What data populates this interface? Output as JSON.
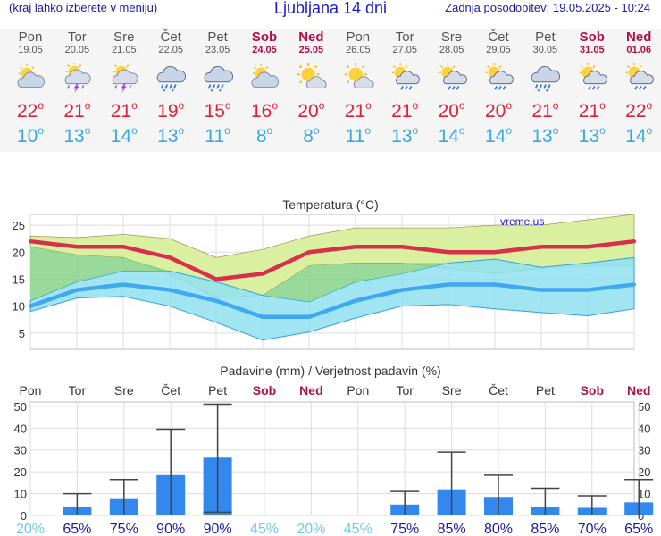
{
  "header": {
    "menu_hint": "(kraj lahko izberete v meniju)",
    "title": "Ljubljana 14 dni",
    "updated": "Zadnja posodobitev: 19.05.2025 - 10:24"
  },
  "days": [
    {
      "name": "Pon",
      "date": "19.05",
      "weekend": false,
      "icon": "partly-cloudy-icon",
      "max": "22",
      "min": "10"
    },
    {
      "name": "Tor",
      "date": "20.05",
      "weekend": false,
      "icon": "thunderstorm-sun-icon",
      "max": "21",
      "min": "13"
    },
    {
      "name": "Sre",
      "date": "21.05",
      "weekend": false,
      "icon": "thunderstorm-sun-icon",
      "max": "21",
      "min": "14"
    },
    {
      "name": "Čet",
      "date": "22.05",
      "weekend": false,
      "icon": "rain-cloud-icon",
      "max": "19",
      "min": "13"
    },
    {
      "name": "Pet",
      "date": "23.05",
      "weekend": false,
      "icon": "rain-cloud-icon",
      "max": "15",
      "min": "11"
    },
    {
      "name": "Sob",
      "date": "24.05",
      "weekend": true,
      "icon": "partly-cloudy-icon",
      "max": "16",
      "min": "8"
    },
    {
      "name": "Ned",
      "date": "25.05",
      "weekend": true,
      "icon": "sunny-cloud-icon",
      "max": "20",
      "min": "8"
    },
    {
      "name": "Pon",
      "date": "26.05",
      "weekend": false,
      "icon": "sunny-cloud-icon",
      "max": "21",
      "min": "11"
    },
    {
      "name": "Tor",
      "date": "27.05",
      "weekend": false,
      "icon": "sun-rain-icon",
      "max": "21",
      "min": "13"
    },
    {
      "name": "Sre",
      "date": "28.05",
      "weekend": false,
      "icon": "sun-rain-icon",
      "max": "20",
      "min": "14"
    },
    {
      "name": "Čet",
      "date": "29.05",
      "weekend": false,
      "icon": "sun-rain-icon",
      "max": "20",
      "min": "14"
    },
    {
      "name": "Pet",
      "date": "30.05",
      "weekend": false,
      "icon": "rain-cloud-icon",
      "max": "21",
      "min": "13"
    },
    {
      "name": "Sob",
      "date": "31.05",
      "weekend": true,
      "icon": "sun-rain-icon",
      "max": "21",
      "min": "13"
    },
    {
      "name": "Ned",
      "date": "01.06",
      "weekend": true,
      "icon": "sun-rain-icon",
      "max": "22",
      "min": "14"
    }
  ],
  "degree_symbol": "o",
  "colors": {
    "max_temp": "#e0203a",
    "min_temp": "#3aa8dc",
    "weekend": "#b0104a",
    "max_band": "#d8f0a0",
    "min_band": "#90e0f0",
    "overlap": "#80d080",
    "max_line": "#d8304a",
    "min_line": "#40a8f0",
    "bar": "#3388ee",
    "prob_high": "#1a1aa0",
    "prob_low": "#70c8f0"
  },
  "chart_data": [
    {
      "type": "line",
      "title": "Temperatura (°C)",
      "watermark": "vreme.us",
      "x": [
        "19.05",
        "20.05",
        "21.05",
        "22.05",
        "23.05",
        "24.05",
        "25.05",
        "26.05",
        "27.05",
        "28.05",
        "29.05",
        "30.05",
        "31.05",
        "01.06"
      ],
      "ylim": [
        2,
        27
      ],
      "yticks": [
        5,
        10,
        15,
        20,
        25
      ],
      "grid": true,
      "series": [
        {
          "role": "max",
          "values": [
            22,
            21,
            21,
            19,
            15,
            16,
            20,
            21,
            21,
            20,
            20,
            21,
            21,
            22
          ]
        },
        {
          "role": "max-upper",
          "values": [
            23,
            22.7,
            23.3,
            22.5,
            19,
            20.5,
            23,
            24.5,
            24.5,
            24.5,
            25,
            25,
            26,
            27
          ]
        },
        {
          "role": "max-lower",
          "values": [
            21,
            19.5,
            19,
            16,
            11.5,
            12,
            17.5,
            18,
            18,
            17,
            16,
            17,
            17.5,
            17.5
          ]
        },
        {
          "role": "min",
          "values": [
            10,
            13,
            14,
            13,
            11,
            8,
            8,
            11,
            13,
            14,
            14,
            13,
            13,
            14
          ]
        },
        {
          "role": "min-upper",
          "values": [
            11,
            14.5,
            16.5,
            16.5,
            14.5,
            12,
            10.8,
            14.5,
            16,
            18,
            18.7,
            17.2,
            18,
            19
          ]
        },
        {
          "role": "min-lower",
          "values": [
            9,
            11.5,
            11.8,
            10,
            7,
            3.7,
            5.2,
            7.8,
            10,
            10.3,
            9.5,
            8.8,
            8.2,
            9.5
          ]
        }
      ]
    },
    {
      "type": "bar",
      "title": "Padavine (mm) / Verjetnost padavin (%)",
      "categories": [
        "Pon",
        "Tor",
        "Sre",
        "Čet",
        "Pet",
        "Sob",
        "Ned",
        "Pon",
        "Tor",
        "Sre",
        "Čet",
        "Pet",
        "Sob",
        "Ned"
      ],
      "weekend": [
        false,
        false,
        false,
        false,
        false,
        true,
        true,
        false,
        false,
        false,
        false,
        false,
        true,
        true
      ],
      "values": [
        0,
        4,
        7.5,
        18.5,
        26.5,
        0,
        0,
        0,
        5,
        12,
        8.5,
        4,
        3.5,
        6
      ],
      "error_low": [
        0,
        0,
        0,
        0,
        1.5,
        0,
        0,
        0,
        0,
        0,
        0,
        0,
        0,
        0
      ],
      "error_high": [
        0,
        10,
        16.5,
        39.5,
        51,
        0,
        0,
        0,
        11,
        29,
        18.5,
        12.5,
        9,
        16.5
      ],
      "probability": [
        "20%",
        "65%",
        "75%",
        "90%",
        "90%",
        "45%",
        "20%",
        "45%",
        "75%",
        "85%",
        "80%",
        "85%",
        "70%",
        "65%"
      ],
      "ylim": [
        0,
        52
      ],
      "yticks": [
        0,
        10,
        20,
        30,
        40,
        50
      ],
      "grid": true
    }
  ]
}
